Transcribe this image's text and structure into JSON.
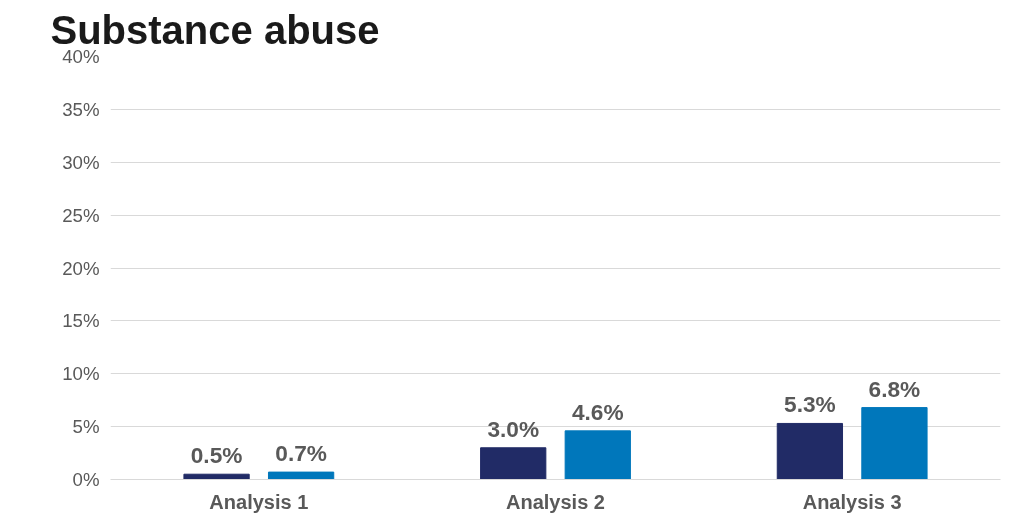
{
  "chart_data": {
    "type": "bar",
    "title": "Substance abuse",
    "categories": [
      "Analysis 1",
      "Analysis 2",
      "Analysis 3"
    ],
    "series": [
      {
        "color": "#212b66",
        "values": [
          0.5,
          3.0,
          5.3
        ],
        "value_labels": [
          "0.5%",
          "3.0%",
          "5.3%"
        ]
      },
      {
        "color": "#0077bb",
        "values": [
          0.7,
          4.6,
          6.8
        ],
        "value_labels": [
          "0.7%",
          "4.6%",
          "6.8%"
        ]
      }
    ],
    "ylim": [
      0,
      40
    ],
    "yticks": [
      {
        "value": 0,
        "label": "0%"
      },
      {
        "value": 5,
        "label": "5%"
      },
      {
        "value": 10,
        "label": "10%"
      },
      {
        "value": 15,
        "label": "15%"
      },
      {
        "value": 20,
        "label": "20%"
      },
      {
        "value": 25,
        "label": "25%"
      },
      {
        "value": 30,
        "label": "30%"
      },
      {
        "value": 35,
        "label": "35%"
      },
      {
        "value": 40,
        "label": "40%"
      }
    ],
    "grid": "y"
  }
}
